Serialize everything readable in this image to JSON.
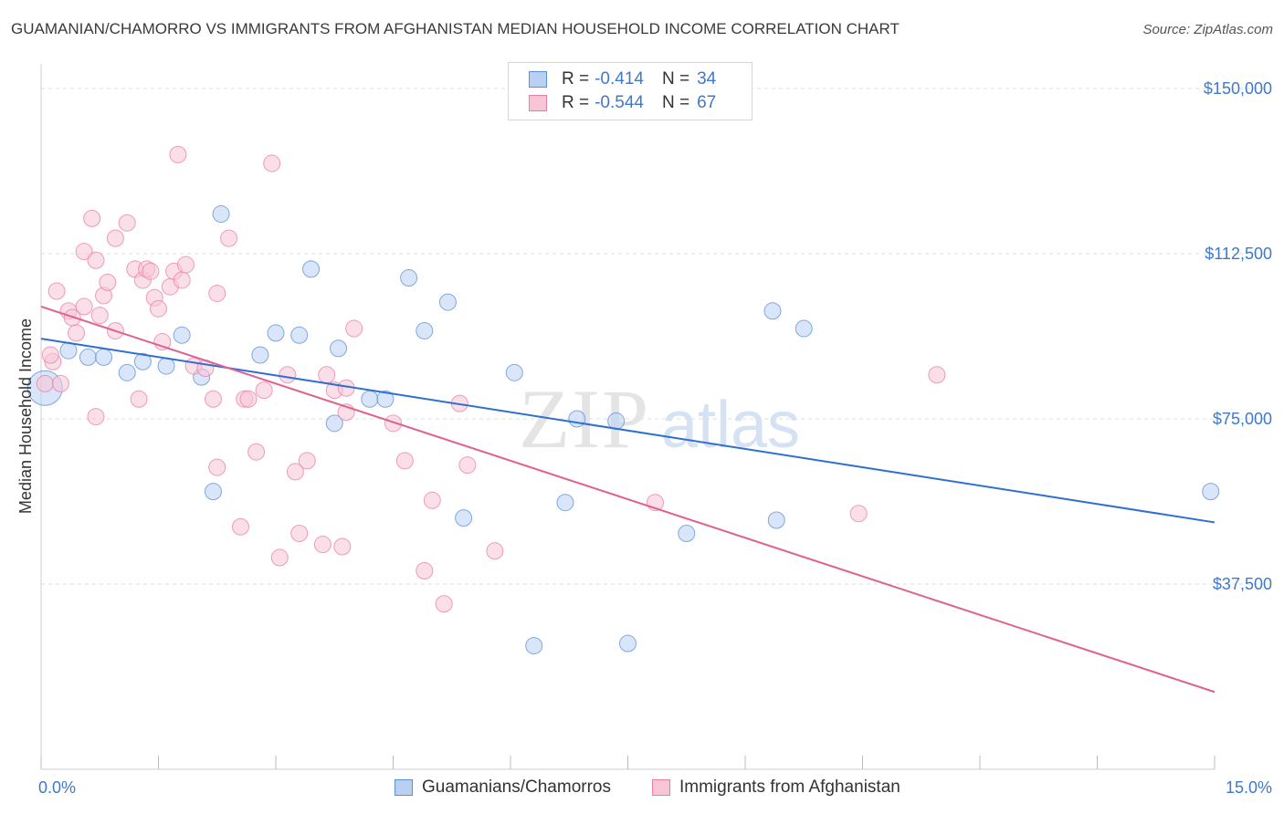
{
  "title": "GUAMANIAN/CHAMORRO VS IMMIGRANTS FROM AFGHANISTAN MEDIAN HOUSEHOLD INCOME CORRELATION CHART",
  "source": "Source: ZipAtlas.com",
  "watermark": {
    "zip": "ZIP",
    "atlas": "atlas"
  },
  "legend": {
    "r_label": "R =",
    "n_label": "N =",
    "rows": [
      {
        "r": "-0.414",
        "n": "34"
      },
      {
        "r": "-0.544",
        "n": "67"
      }
    ]
  },
  "chart_data": {
    "type": "scatter",
    "title": "GUAMANIAN/CHAMORRO VS IMMIGRANTS FROM AFGHANISTAN MEDIAN HOUSEHOLD INCOME CORRELATION CHART",
    "xlabel": "",
    "ylabel": "Median Household Income",
    "xlim": [
      0,
      15
    ],
    "ylim": [
      0,
      155000
    ],
    "x_tick_labels": [
      "0.0%",
      "15.0%"
    ],
    "y_ticks": [
      {
        "value": 37500,
        "label": "$37,500"
      },
      {
        "value": 75000,
        "label": "$75,000"
      },
      {
        "value": 112500,
        "label": "$112,500"
      },
      {
        "value": 150000,
        "label": "$150,000"
      }
    ],
    "grid": "horizontal dashed",
    "legend_position": "bottom",
    "series": [
      {
        "name": "Guamanians/Chamorros",
        "color": "#5b8fd6",
        "fill": "#b9d0f2",
        "r": -0.414,
        "n": 34,
        "trend": [
          [
            0,
            93200
          ],
          [
            15,
            51500
          ]
        ],
        "points": [
          [
            0.05,
            82000
          ],
          [
            0.35,
            90500
          ],
          [
            0.6,
            89000
          ],
          [
            0.8,
            89000
          ],
          [
            1.1,
            85500
          ],
          [
            1.3,
            88000
          ],
          [
            1.6,
            87000
          ],
          [
            1.8,
            94000
          ],
          [
            2.05,
            84500
          ],
          [
            2.3,
            121500
          ],
          [
            2.2,
            58500
          ],
          [
            2.8,
            89500
          ],
          [
            3.0,
            94500
          ],
          [
            3.3,
            94000
          ],
          [
            3.45,
            109000
          ],
          [
            3.75,
            74000
          ],
          [
            3.8,
            91000
          ],
          [
            4.2,
            79500
          ],
          [
            4.4,
            79500
          ],
          [
            4.7,
            107000
          ],
          [
            4.9,
            95000
          ],
          [
            5.2,
            101500
          ],
          [
            5.4,
            52500
          ],
          [
            6.05,
            85500
          ],
          [
            6.3,
            23500
          ],
          [
            6.7,
            56000
          ],
          [
            6.85,
            75000
          ],
          [
            7.35,
            74500
          ],
          [
            7.5,
            24000
          ],
          [
            8.25,
            49000
          ],
          [
            9.35,
            99500
          ],
          [
            9.4,
            52000
          ],
          [
            9.75,
            95500
          ],
          [
            14.95,
            58500
          ]
        ]
      },
      {
        "name": "Immigrants from Afghanistan",
        "color": "#e87fa3",
        "fill": "#f7c5d6",
        "r": -0.544,
        "n": 67,
        "trend": [
          [
            0,
            100500
          ],
          [
            15,
            13000
          ]
        ],
        "points": [
          [
            0.05,
            83000
          ],
          [
            0.15,
            88000
          ],
          [
            0.2,
            104000
          ],
          [
            0.25,
            83000
          ],
          [
            0.35,
            99500
          ],
          [
            0.4,
            98000
          ],
          [
            0.45,
            94500
          ],
          [
            0.55,
            100500
          ],
          [
            0.55,
            113000
          ],
          [
            0.65,
            120500
          ],
          [
            0.7,
            111000
          ],
          [
            0.75,
            98500
          ],
          [
            0.7,
            75500
          ],
          [
            0.8,
            103000
          ],
          [
            0.85,
            106000
          ],
          [
            0.95,
            95000
          ],
          [
            0.95,
            116000
          ],
          [
            1.1,
            119500
          ],
          [
            1.2,
            109000
          ],
          [
            1.3,
            106500
          ],
          [
            1.25,
            79500
          ],
          [
            1.35,
            109000
          ],
          [
            1.4,
            108500
          ],
          [
            1.45,
            102500
          ],
          [
            1.5,
            100000
          ],
          [
            1.55,
            92500
          ],
          [
            1.65,
            105000
          ],
          [
            1.7,
            108500
          ],
          [
            1.75,
            135000
          ],
          [
            1.8,
            106500
          ],
          [
            1.85,
            110000
          ],
          [
            1.95,
            87000
          ],
          [
            2.1,
            86500
          ],
          [
            2.2,
            79500
          ],
          [
            2.25,
            64000
          ],
          [
            2.25,
            103500
          ],
          [
            2.4,
            116000
          ],
          [
            2.55,
            50500
          ],
          [
            2.6,
            79500
          ],
          [
            2.65,
            79500
          ],
          [
            2.75,
            67500
          ],
          [
            2.85,
            81500
          ],
          [
            2.95,
            133000
          ],
          [
            3.05,
            43500
          ],
          [
            3.15,
            85000
          ],
          [
            3.25,
            63000
          ],
          [
            3.3,
            49000
          ],
          [
            3.4,
            65500
          ],
          [
            3.6,
            46500
          ],
          [
            3.65,
            85000
          ],
          [
            3.75,
            81500
          ],
          [
            3.85,
            46000
          ],
          [
            3.9,
            82000
          ],
          [
            3.9,
            76500
          ],
          [
            4.0,
            95500
          ],
          [
            4.5,
            74000
          ],
          [
            4.65,
            65500
          ],
          [
            4.9,
            40500
          ],
          [
            5.0,
            56500
          ],
          [
            5.15,
            33000
          ],
          [
            5.35,
            78500
          ],
          [
            5.45,
            64500
          ],
          [
            5.8,
            45000
          ],
          [
            7.85,
            56000
          ],
          [
            10.45,
            53500
          ],
          [
            11.45,
            85000
          ],
          [
            0.12,
            89500
          ]
        ]
      }
    ]
  }
}
